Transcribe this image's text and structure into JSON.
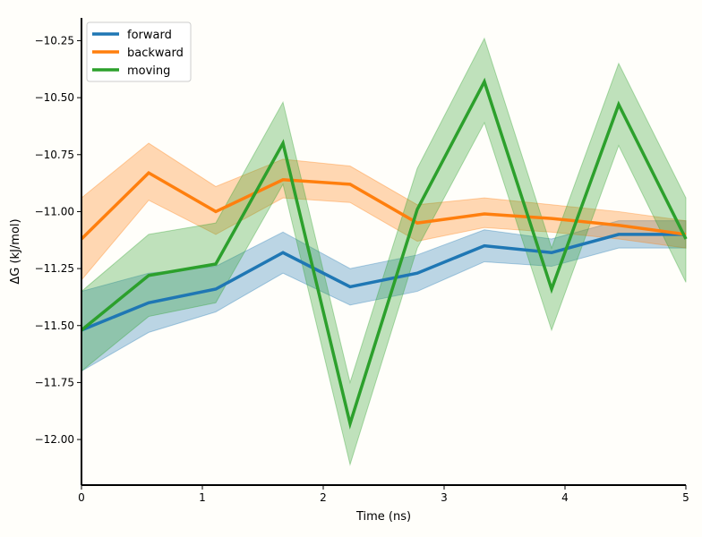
{
  "chart_data": {
    "type": "line",
    "xlabel": "Time (ns)",
    "ylabel": "ΔG (kJ/mol)",
    "xlim": [
      0,
      5
    ],
    "ylim": [
      -12.2,
      -10.15
    ],
    "x_ticks": [
      0,
      1,
      2,
      3,
      4,
      5
    ],
    "x_tick_labels": [
      "0",
      "1",
      "2",
      "3",
      "4",
      "5"
    ],
    "y_ticks": [
      -12.0,
      -11.75,
      -11.5,
      -11.25,
      -11.0,
      -10.75,
      -10.5,
      -10.25
    ],
    "y_tick_labels": [
      "−12.00",
      "−11.75",
      "−11.50",
      "−11.25",
      "−11.00",
      "−10.75",
      "−10.50",
      "−10.25"
    ],
    "grid": false,
    "legend_position": "top-left",
    "x": [
      0,
      0.556,
      1.111,
      1.667,
      2.222,
      2.778,
      3.333,
      3.889,
      4.444,
      5.0
    ],
    "series": [
      {
        "name": "forward",
        "color": "#1f77b4",
        "values": [
          -11.52,
          -11.4,
          -11.34,
          -11.18,
          -11.33,
          -11.27,
          -11.15,
          -11.18,
          -11.1,
          -11.1
        ],
        "lower": [
          -11.7,
          -11.53,
          -11.44,
          -11.27,
          -11.41,
          -11.35,
          -11.22,
          -11.24,
          -11.16,
          -11.16
        ],
        "upper": [
          -11.35,
          -11.27,
          -11.24,
          -11.09,
          -11.25,
          -11.19,
          -11.08,
          -11.12,
          -11.04,
          -11.04
        ]
      },
      {
        "name": "backward",
        "color": "#ff7f0e",
        "values": [
          -11.12,
          -10.83,
          -11.0,
          -10.86,
          -10.88,
          -11.05,
          -11.01,
          -11.03,
          -11.06,
          -11.1
        ],
        "lower": [
          -11.3,
          -10.95,
          -11.1,
          -10.94,
          -10.96,
          -11.13,
          -11.07,
          -11.09,
          -11.12,
          -11.16
        ],
        "upper": [
          -10.94,
          -10.7,
          -10.89,
          -10.77,
          -10.8,
          -10.97,
          -10.94,
          -10.97,
          -11.0,
          -11.04
        ]
      },
      {
        "name": "moving",
        "color": "#2ca02c",
        "values": [
          -11.52,
          -11.28,
          -11.23,
          -10.7,
          -11.93,
          -10.99,
          -10.43,
          -11.34,
          -10.53,
          -11.12
        ],
        "lower": [
          -11.7,
          -11.46,
          -11.4,
          -10.88,
          -12.11,
          -11.16,
          -10.61,
          -11.52,
          -10.71,
          -11.31
        ],
        "upper": [
          -11.35,
          -11.1,
          -11.05,
          -10.52,
          -11.75,
          -10.81,
          -10.24,
          -11.16,
          -10.35,
          -10.94
        ]
      }
    ]
  }
}
